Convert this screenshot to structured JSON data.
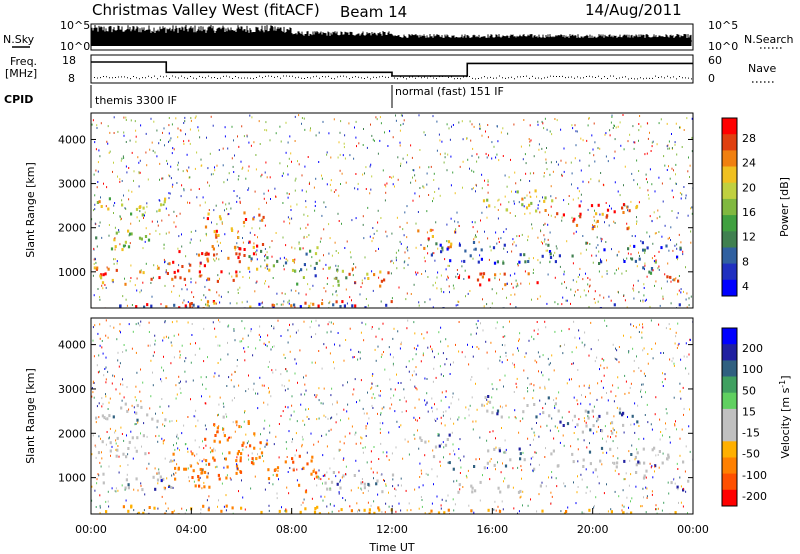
{
  "header": {
    "station": "Christmas Valley West (fitACF)",
    "beam": "Beam 14",
    "date": "14/Aug/2011"
  },
  "colors": {
    "scale": [
      "#0000ff",
      "#2030c0",
      "#3060a0",
      "#408050",
      "#40a040",
      "#80b840",
      "#c0d040",
      "#f0c020",
      "#f08010",
      "#e04010",
      "#ff0000"
    ],
    "velocity_scale": [
      "#ff0000",
      "#ff5000",
      "#ff8000",
      "#ffb000",
      "#c0c0c0",
      "#c0c0c0",
      "#60d060",
      "#40a060",
      "#306080",
      "#2020a0",
      "#0000ff"
    ]
  },
  "chart_data": [
    {
      "type": "line",
      "name": "N.Sky / N.Search",
      "left_label": "N.Sky",
      "right_label": "N.Search",
      "y_ticks_left": [
        "10^5",
        "10^0"
      ],
      "y_ticks_right": [
        "10^5",
        "10^0"
      ]
    },
    {
      "type": "line",
      "name": "Freq / Nave",
      "left_label_line1": "Freq.",
      "left_label_line2": "[MHz]",
      "right_label": "Nave",
      "y_ticks_left": [
        "18",
        "8"
      ],
      "y_ticks_right": [
        "60",
        "0"
      ],
      "freq_steps": [
        {
          "t0": 0.0,
          "t1": 3.0,
          "mhz": 15.5
        },
        {
          "t0": 3.0,
          "t1": 12.0,
          "mhz": 11.8
        },
        {
          "t0": 12.0,
          "t1": 15.0,
          "mhz": 10.5
        },
        {
          "t0": 15.0,
          "t1": 24.0,
          "mhz": 15.0
        }
      ]
    },
    {
      "type": "table",
      "name": "CPID",
      "label": "CPID",
      "entries": [
        {
          "t": 0.0,
          "text": "themis 3300 IF"
        },
        {
          "t": 12.0,
          "text": "normal (fast) 151 IF"
        }
      ]
    },
    {
      "type": "heatmap",
      "quantity": "Power",
      "ylabel": "Slant Range [km]",
      "ylim": [
        180,
        4600
      ],
      "yticks": [
        1000,
        2000,
        3000,
        4000
      ],
      "xlim": [
        0,
        24
      ],
      "colorbar": {
        "label": "Power [dB]",
        "ticks": [
          28,
          24,
          20,
          16,
          12,
          8,
          4
        ]
      }
    },
    {
      "type": "heatmap",
      "quantity": "Velocity",
      "ylabel": "Slant Range [km]",
      "xlabel": "Time UT",
      "ylim": [
        180,
        4600
      ],
      "yticks": [
        1000,
        2000,
        3000,
        4000
      ],
      "xlim": [
        0,
        24
      ],
      "xticks": [
        "00:00",
        "04:00",
        "08:00",
        "12:00",
        "16:00",
        "20:00",
        "00:00"
      ],
      "colorbar": {
        "label_main": "Velocity",
        "label_unit": "[m s",
        "label_sup": "-1",
        "label_end": "]",
        "ticks": [
          200,
          100,
          50,
          15,
          -15,
          -50,
          -100,
          -200
        ]
      }
    }
  ]
}
